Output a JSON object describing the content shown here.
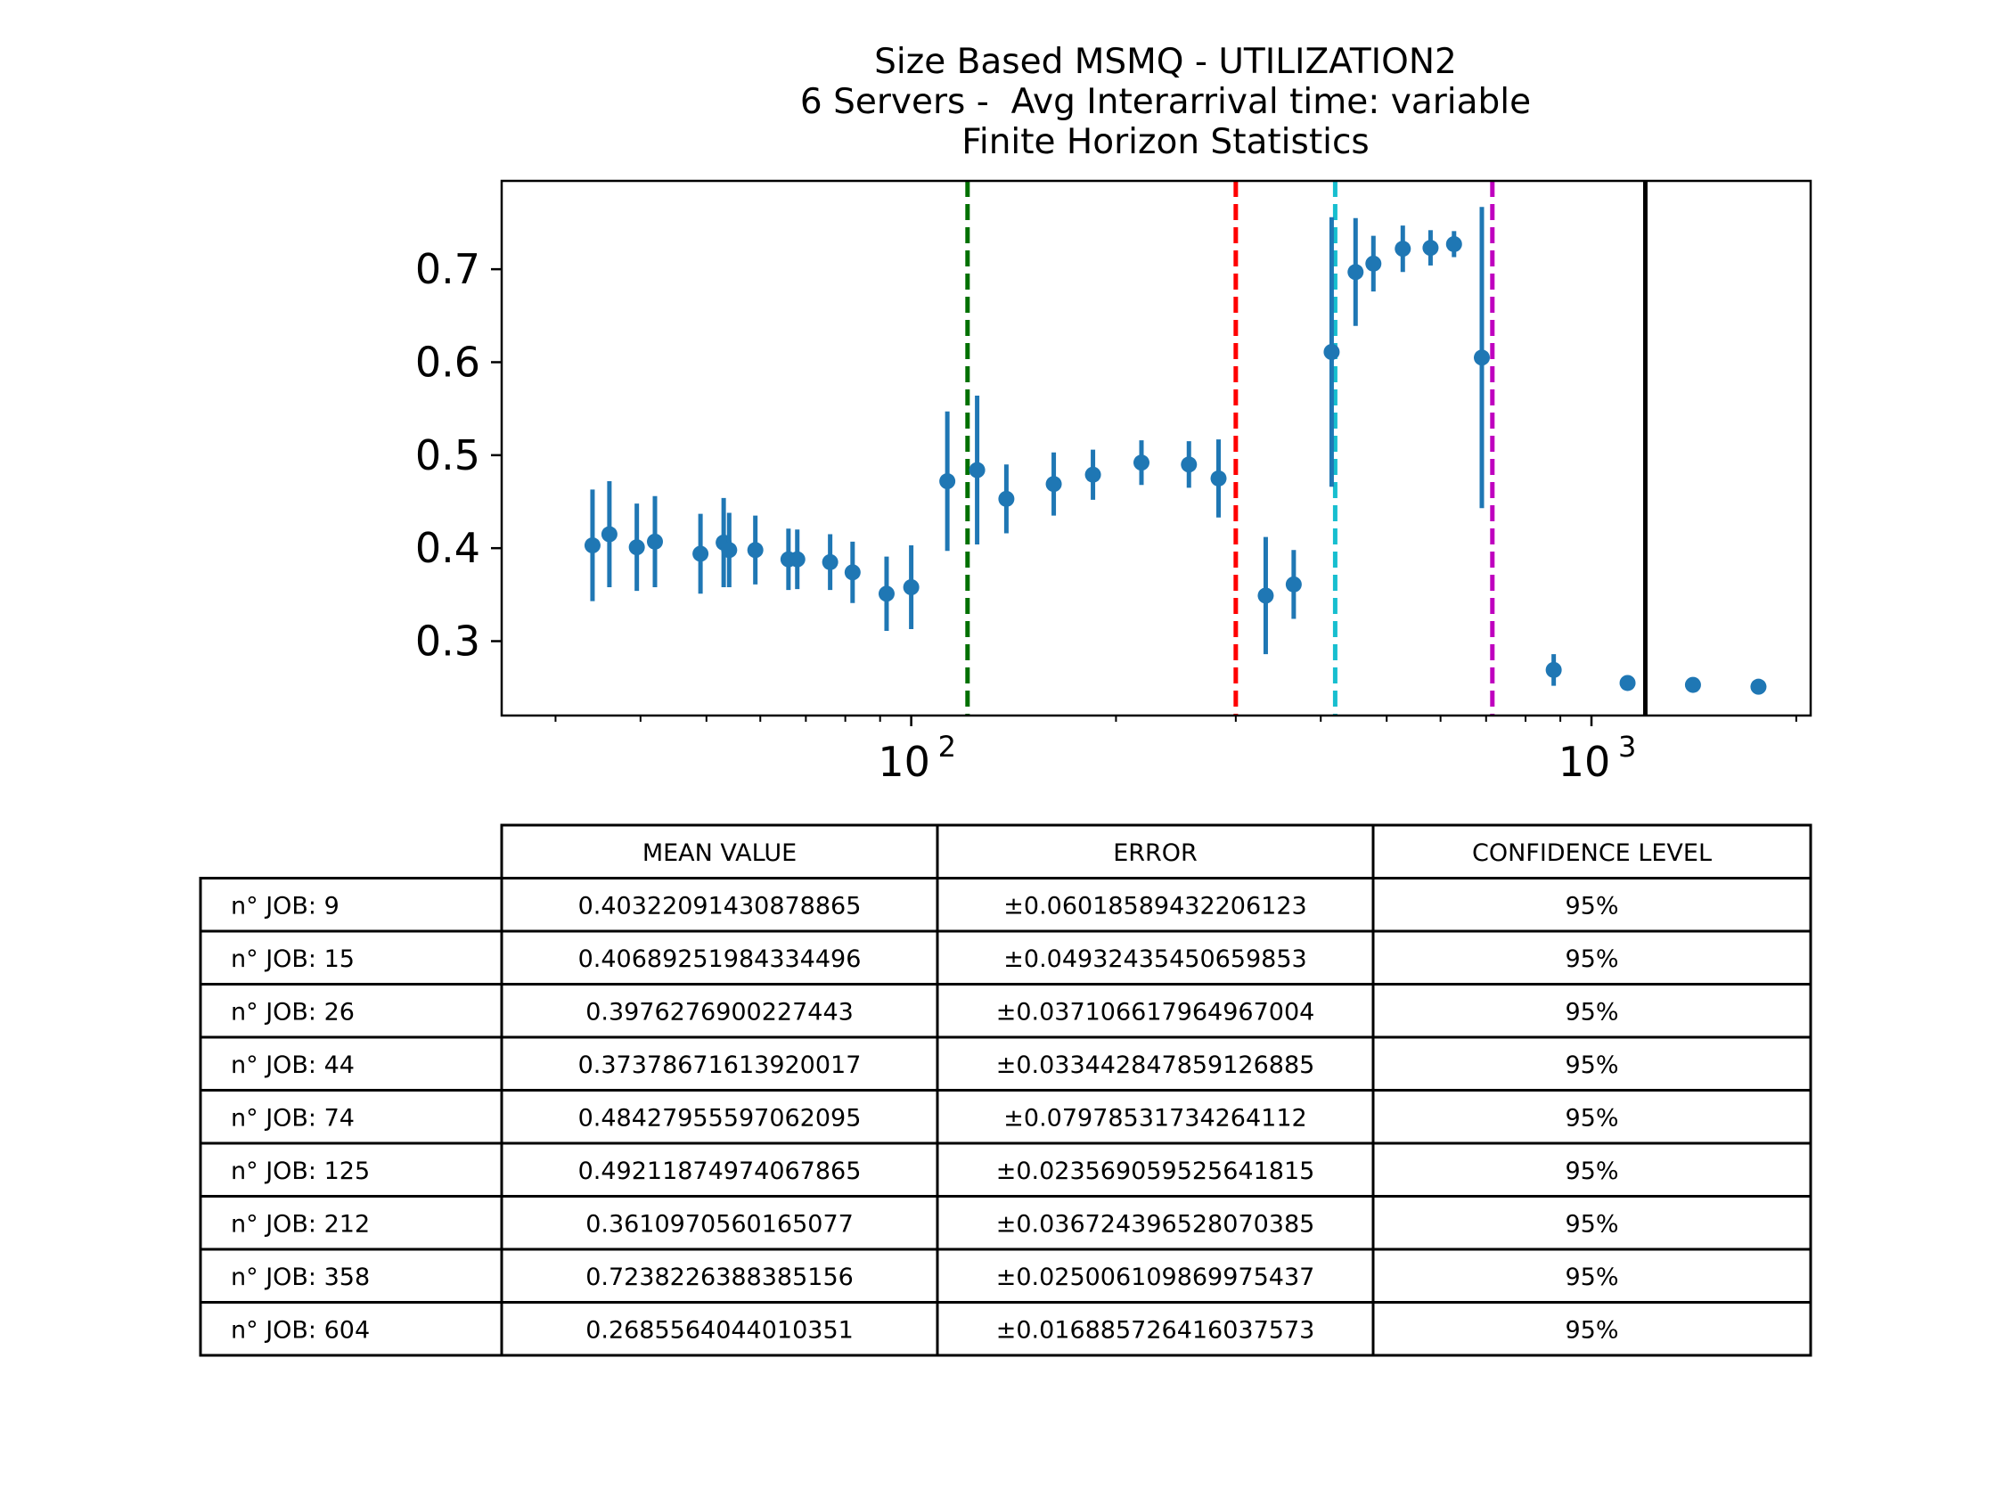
{
  "chart_data": {
    "type": "scatter",
    "title_lines": [
      "Size Based MSMQ - UTILIZATION2",
      "6 Servers -  Avg Interarrival time: variable",
      "Finite Horizon Statistics"
    ],
    "xscale": "log",
    "xlim": [
      25,
      2100
    ],
    "ylim": [
      0.22,
      0.795
    ],
    "x_ticks": [
      100,
      1000
    ],
    "x_tick_labels": [
      {
        "base": "10",
        "exp": "2"
      },
      {
        "base": "10",
        "exp": "3"
      }
    ],
    "y_ticks": [
      0.3,
      0.4,
      0.5,
      0.6,
      0.7
    ],
    "y_tick_labels": [
      "0.3",
      "0.4",
      "0.5",
      "0.6",
      "0.7"
    ],
    "grid": false,
    "colors": {
      "points": "#1f77b4",
      "green_line": "#007000",
      "red_line": "#ff0000",
      "cyan_line": "#17becf",
      "magenta_line": "#bf00bf",
      "black_line": "#000000"
    },
    "vertical_lines": [
      {
        "x": 121,
        "style": "dashed",
        "color_key": "green_line"
      },
      {
        "x": 300,
        "style": "dashed",
        "color_key": "red_line"
      },
      {
        "x": 420,
        "style": "dashed",
        "color_key": "cyan_line"
      },
      {
        "x": 715,
        "style": "dashed",
        "color_key": "magenta_line"
      },
      {
        "x": 1200,
        "style": "solid",
        "color_key": "black_line"
      }
    ],
    "points": [
      {
        "x": 34,
        "y": 0.403,
        "err": 0.06
      },
      {
        "x": 36,
        "y": 0.415,
        "err": 0.057
      },
      {
        "x": 39.5,
        "y": 0.401,
        "err": 0.047
      },
      {
        "x": 42,
        "y": 0.407,
        "err": 0.049
      },
      {
        "x": 49,
        "y": 0.394,
        "err": 0.043
      },
      {
        "x": 53,
        "y": 0.406,
        "err": 0.048
      },
      {
        "x": 54,
        "y": 0.398,
        "err": 0.04
      },
      {
        "x": 59,
        "y": 0.398,
        "err": 0.037
      },
      {
        "x": 66,
        "y": 0.388,
        "err": 0.033
      },
      {
        "x": 68,
        "y": 0.388,
        "err": 0.032
      },
      {
        "x": 76,
        "y": 0.385,
        "err": 0.03
      },
      {
        "x": 82,
        "y": 0.374,
        "err": 0.033
      },
      {
        "x": 92,
        "y": 0.351,
        "err": 0.04
      },
      {
        "x": 100,
        "y": 0.358,
        "err": 0.045
      },
      {
        "x": 113,
        "y": 0.472,
        "err": 0.075
      },
      {
        "x": 125,
        "y": 0.484,
        "err": 0.08
      },
      {
        "x": 138,
        "y": 0.453,
        "err": 0.037
      },
      {
        "x": 162,
        "y": 0.469,
        "err": 0.034
      },
      {
        "x": 185,
        "y": 0.479,
        "err": 0.027
      },
      {
        "x": 218,
        "y": 0.492,
        "err": 0.024
      },
      {
        "x": 256,
        "y": 0.49,
        "err": 0.025
      },
      {
        "x": 283,
        "y": 0.475,
        "err": 0.042
      },
      {
        "x": 332,
        "y": 0.349,
        "err": 0.063
      },
      {
        "x": 365,
        "y": 0.361,
        "err": 0.037
      },
      {
        "x": 415,
        "y": 0.611,
        "err": 0.145
      },
      {
        "x": 450,
        "y": 0.697,
        "err": 0.058
      },
      {
        "x": 478,
        "y": 0.706,
        "err": 0.03
      },
      {
        "x": 528,
        "y": 0.722,
        "err": 0.025
      },
      {
        "x": 580,
        "y": 0.723,
        "err": 0.019
      },
      {
        "x": 628,
        "y": 0.727,
        "err": 0.014
      },
      {
        "x": 690,
        "y": 0.605,
        "err": 0.162
      },
      {
        "x": 880,
        "y": 0.269,
        "err": 0.017
      },
      {
        "x": 1130,
        "y": 0.255,
        "err": 0.008
      },
      {
        "x": 1410,
        "y": 0.253,
        "err": 0.004
      },
      {
        "x": 1760,
        "y": 0.251,
        "err": 0.003
      }
    ]
  },
  "table": {
    "headers": [
      "MEAN VALUE",
      "ERROR",
      "CONFIDENCE LEVEL"
    ],
    "rows": [
      {
        "label": "n° JOB: 9",
        "mean": "0.40322091430878865",
        "error": "±0.06018589432206123",
        "confidence": "95%"
      },
      {
        "label": "n° JOB: 15",
        "mean": "0.40689251984334496",
        "error": "±0.04932435450659853",
        "confidence": "95%"
      },
      {
        "label": "n° JOB: 26",
        "mean": "0.3976276900227443",
        "error": "±0.037106617964967004",
        "confidence": "95%"
      },
      {
        "label": "n° JOB: 44",
        "mean": "0.37378671613920017",
        "error": "±0.033442847859126885",
        "confidence": "95%"
      },
      {
        "label": "n° JOB: 74",
        "mean": "0.48427955597062095",
        "error": "±0.07978531734264112",
        "confidence": "95%"
      },
      {
        "label": "n° JOB: 125",
        "mean": "0.49211874974067865",
        "error": "±0.023569059525641815",
        "confidence": "95%"
      },
      {
        "label": "n° JOB: 212",
        "mean": "0.3610970560165077",
        "error": "±0.036724396528070385",
        "confidence": "95%"
      },
      {
        "label": "n° JOB: 358",
        "mean": "0.7238226388385156",
        "error": "±0.025006109869975437",
        "confidence": "95%"
      },
      {
        "label": "n° JOB: 604",
        "mean": "0.2685564044010351",
        "error": "±0.016885726416037573",
        "confidence": "95%"
      }
    ]
  }
}
